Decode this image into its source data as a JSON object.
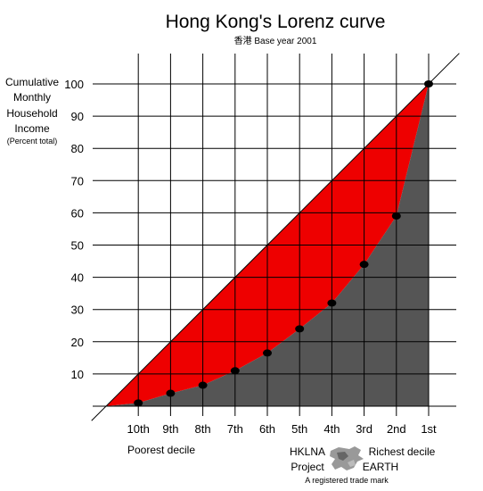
{
  "chart_data": {
    "type": "line",
    "title": "Hong Kong's Lorenz curve",
    "subtitle": "香港 Base year 2001",
    "ylabel_lines": [
      "Cumulative",
      "Monthly",
      "Household",
      "Income"
    ],
    "ylabel_note": "(Percent total)",
    "ylim": [
      0,
      100
    ],
    "yticks": [
      "10",
      "20",
      "30",
      "40",
      "50",
      "60",
      "70",
      "80",
      "90",
      "100"
    ],
    "categories": [
      "10th",
      "9th",
      "8th",
      "7th",
      "6th",
      "5th",
      "4th",
      "3rd",
      "2nd",
      "1st"
    ],
    "series": [
      {
        "values": [
          1,
          4,
          6.5,
          11,
          16.5,
          24,
          32,
          44,
          59,
          100
        ]
      }
    ],
    "grid": true,
    "colors": {
      "inequality_area": "#ee0000",
      "below_curve": "#555555",
      "points": "#000000"
    }
  },
  "footer": {
    "poorest": "Poorest decile",
    "richest": "Richest decile",
    "logo_left_1": "HKLNA",
    "logo_left_2": "Project",
    "logo_right": "EARTH",
    "trademark": "A registered trade mark"
  }
}
